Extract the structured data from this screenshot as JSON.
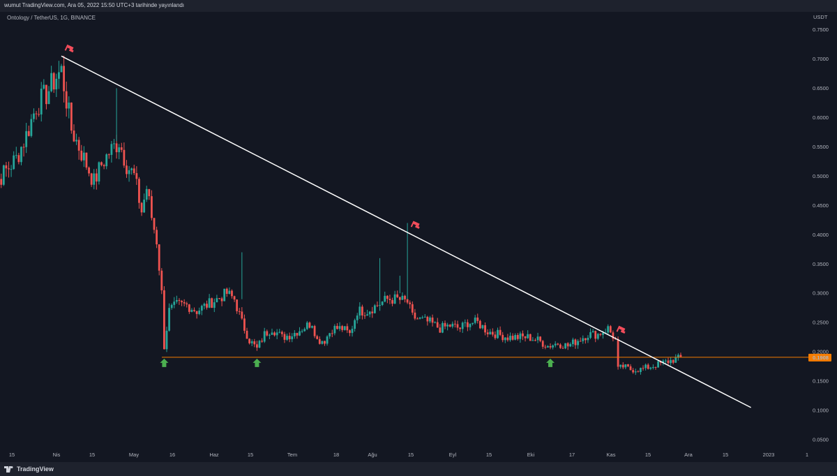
{
  "header": {
    "published": "wumut TradingView.com, Ara 05, 2022 15:50 UTC+3 tarihinde yayınlandı"
  },
  "symbol": "Ontology / TetherUS, 1G, BINANCE",
  "footer": {
    "brand": "TradingView"
  },
  "colors": {
    "background": "#131722",
    "up": "#26a69a",
    "down": "#ef5350",
    "trendline": "#ffffff",
    "support": "#f57c00",
    "arrow": "#4caf50",
    "flag": "#f44d5b"
  },
  "chart_data": {
    "type": "candlestick",
    "currency": "USDT",
    "yticks": [
      "0.7500",
      "0.7000",
      "0.6500",
      "0.6000",
      "0.5500",
      "0.5000",
      "0.4500",
      "0.4000",
      "0.3500",
      "0.3000",
      "0.2500",
      "0.2000",
      "0.1500",
      "0.1000",
      "0.0500"
    ],
    "ylim": [
      0.0,
      0.775
    ],
    "last_price": "0.1908",
    "xticks": [
      "15",
      "Nis",
      "15",
      "May",
      "16",
      "Haz",
      "15",
      "Tem",
      "18",
      "Ağu",
      "15",
      "Eyl",
      "15",
      "Eki",
      "17",
      "Kas",
      "15",
      "Ara",
      "15",
      "2023",
      "1"
    ],
    "support_level": 0.1908,
    "trendline": {
      "from": [
        "2022-04-01",
        0.705
      ],
      "to": [
        "2023-01-01",
        0.105
      ]
    },
    "trendline_touches": [
      "2022-04-01",
      "2022-08-17",
      "2022-11-07"
    ],
    "support_touches": [
      "2022-05-12",
      "2022-06-18",
      "2022-10-13"
    ],
    "close_path": [
      [
        "2022-03-02",
        0.475
      ],
      [
        "2022-03-06",
        0.49
      ],
      [
        "2022-03-10",
        0.51
      ],
      [
        "2022-03-14",
        0.53
      ],
      [
        "2022-03-18",
        0.57
      ],
      [
        "2022-03-22",
        0.62
      ],
      [
        "2022-03-26",
        0.64
      ],
      [
        "2022-03-30",
        0.67
      ],
      [
        "2022-04-01",
        0.68
      ],
      [
        "2022-04-03",
        0.63
      ],
      [
        "2022-04-05",
        0.58
      ],
      [
        "2022-04-08",
        0.55
      ],
      [
        "2022-04-11",
        0.52
      ],
      [
        "2022-04-14",
        0.49
      ],
      [
        "2022-04-17",
        0.52
      ],
      [
        "2022-04-20",
        0.54
      ],
      [
        "2022-04-24",
        0.56
      ],
      [
        "2022-04-27",
        0.52
      ],
      [
        "2022-04-30",
        0.5
      ],
      [
        "2022-05-03",
        0.44
      ],
      [
        "2022-05-05",
        0.48
      ],
      [
        "2022-05-07",
        0.43
      ],
      [
        "2022-05-09",
        0.39
      ],
      [
        "2022-05-11",
        0.3
      ],
      [
        "2022-05-12",
        0.21
      ],
      [
        "2022-05-14",
        0.27
      ],
      [
        "2022-05-17",
        0.28
      ],
      [
        "2022-05-21",
        0.28
      ],
      [
        "2022-05-25",
        0.27
      ],
      [
        "2022-05-29",
        0.28
      ],
      [
        "2022-06-02",
        0.29
      ],
      [
        "2022-06-06",
        0.3
      ],
      [
        "2022-06-09",
        0.29
      ],
      [
        "2022-06-12",
        0.25
      ],
      [
        "2022-06-15",
        0.22
      ],
      [
        "2022-06-18",
        0.205
      ],
      [
        "2022-06-21",
        0.23
      ],
      [
        "2022-06-24",
        0.24
      ],
      [
        "2022-06-28",
        0.225
      ],
      [
        "2022-07-02",
        0.23
      ],
      [
        "2022-07-06",
        0.24
      ],
      [
        "2022-07-10",
        0.25
      ],
      [
        "2022-07-12",
        0.22
      ],
      [
        "2022-07-15",
        0.22
      ],
      [
        "2022-07-18",
        0.24
      ],
      [
        "2022-07-22",
        0.24
      ],
      [
        "2022-07-25",
        0.23
      ],
      [
        "2022-07-28",
        0.27
      ],
      [
        "2022-08-01",
        0.27
      ],
      [
        "2022-08-05",
        0.28
      ],
      [
        "2022-08-09",
        0.29
      ],
      [
        "2022-08-13",
        0.29
      ],
      [
        "2022-08-17",
        0.285
      ],
      [
        "2022-08-19",
        0.26
      ],
      [
        "2022-08-22",
        0.255
      ],
      [
        "2022-08-26",
        0.25
      ],
      [
        "2022-08-30",
        0.24
      ],
      [
        "2022-09-03",
        0.245
      ],
      [
        "2022-09-07",
        0.24
      ],
      [
        "2022-09-10",
        0.25
      ],
      [
        "2022-09-14",
        0.25
      ],
      [
        "2022-09-18",
        0.235
      ],
      [
        "2022-09-22",
        0.23
      ],
      [
        "2022-09-26",
        0.225
      ],
      [
        "2022-09-30",
        0.225
      ],
      [
        "2022-10-04",
        0.225
      ],
      [
        "2022-10-08",
        0.22
      ],
      [
        "2022-10-12",
        0.21
      ],
      [
        "2022-10-16",
        0.215
      ],
      [
        "2022-10-20",
        0.21
      ],
      [
        "2022-10-24",
        0.22
      ],
      [
        "2022-10-28",
        0.23
      ],
      [
        "2022-11-01",
        0.23
      ],
      [
        "2022-11-05",
        0.24
      ],
      [
        "2022-11-08",
        0.22
      ],
      [
        "2022-11-09",
        0.17
      ],
      [
        "2022-11-11",
        0.175
      ],
      [
        "2022-11-14",
        0.17
      ],
      [
        "2022-11-18",
        0.17
      ],
      [
        "2022-11-22",
        0.175
      ],
      [
        "2022-11-26",
        0.18
      ],
      [
        "2022-11-30",
        0.185
      ],
      [
        "2022-12-04",
        0.19
      ]
    ],
    "spikes": [
      [
        "2022-04-23",
        0.56,
        0.65
      ],
      [
        "2022-06-12",
        0.29,
        0.37
      ],
      [
        "2022-08-06",
        0.27,
        0.36
      ],
      [
        "2022-08-14",
        0.3,
        0.33
      ],
      [
        "2022-08-17",
        0.29,
        0.42
      ]
    ]
  }
}
